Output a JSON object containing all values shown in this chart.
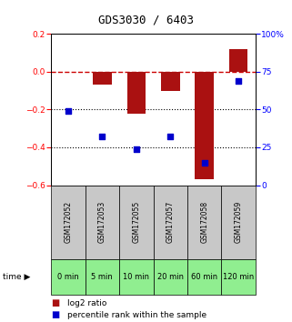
{
  "title": "GDS3030 / 6403",
  "samples": [
    "GSM172052",
    "GSM172053",
    "GSM172055",
    "GSM172057",
    "GSM172058",
    "GSM172059"
  ],
  "time_labels": [
    "0 min",
    "5 min",
    "10 min",
    "20 min",
    "60 min",
    "120 min"
  ],
  "log2_ratio": [
    0.0,
    -0.07,
    -0.22,
    -0.1,
    -0.57,
    0.12
  ],
  "percentile_rank": [
    49,
    32,
    24,
    32,
    15,
    69
  ],
  "bar_color": "#aa1111",
  "dot_color": "#0000cc",
  "ylim_left": [
    -0.6,
    0.2
  ],
  "ylim_right": [
    0,
    100
  ],
  "yticks_left": [
    -0.6,
    -0.4,
    -0.2,
    0.0,
    0.2
  ],
  "yticks_right": [
    0,
    25,
    50,
    75,
    100
  ],
  "ytick_labels_right": [
    "0",
    "25",
    "50",
    "75",
    "100%"
  ],
  "hline_color": "#cc0000",
  "dotted_line_color": "#000000",
  "bg_color": "#ffffff",
  "plot_bg": "#ffffff",
  "sample_cell_color": "#c8c8c8",
  "time_cell_color": "#90ee90",
  "legend_log2_label": "log2 ratio",
  "legend_pct_label": "percentile rank within the sample",
  "bar_width": 0.55,
  "title_fontsize": 9,
  "tick_fontsize": 6.5,
  "sample_fontsize": 5.5,
  "time_fontsize": 6,
  "legend_fontsize": 6.5
}
